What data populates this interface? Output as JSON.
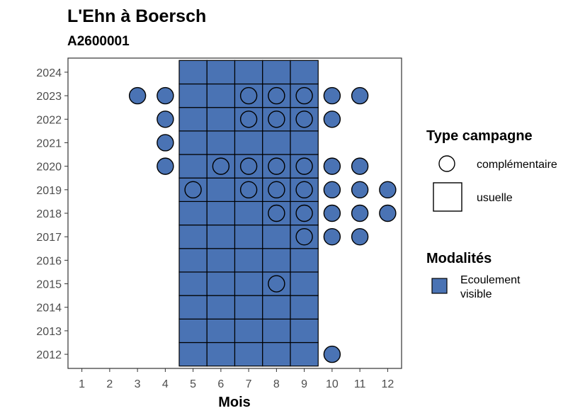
{
  "title": "L'Ehn à Boersch",
  "subtitle": "A2600001",
  "chart_data": {
    "type": "heatmap",
    "title": "L'Ehn à Boersch",
    "subtitle": "A2600001",
    "xlabel": "Mois",
    "ylabel": "",
    "x_ticks": [
      1,
      2,
      3,
      4,
      5,
      6,
      7,
      8,
      9,
      10,
      11,
      12
    ],
    "y_ticks": [
      2012,
      2013,
      2014,
      2015,
      2016,
      2017,
      2018,
      2019,
      2020,
      2021,
      2022,
      2023,
      2024
    ],
    "xlim": [
      0.5,
      12.5
    ],
    "ylim": [
      2011.4,
      2024.6
    ],
    "fill_color": "#4a73b4",
    "grid": false,
    "legend_position": "right",
    "legends": {
      "campagne": {
        "title": "Type campagne",
        "items": [
          {
            "label": "complémentaire",
            "shape": "circle"
          },
          {
            "label": "usuelle",
            "shape": "square"
          }
        ]
      },
      "modalites": {
        "title": "Modalités",
        "items": [
          {
            "label_lines": [
              "Ecoulement",
              "visible"
            ],
            "color": "#4a73b4"
          }
        ]
      }
    },
    "usuelle": {
      "months": [
        5,
        6,
        7,
        8,
        9
      ],
      "years": [
        2012,
        2013,
        2014,
        2015,
        2016,
        2017,
        2018,
        2019,
        2020,
        2021,
        2022,
        2023,
        2024
      ],
      "modalite": "Ecoulement visible"
    },
    "complementaire": [
      {
        "month": 3,
        "year": 2023,
        "filled": true
      },
      {
        "month": 4,
        "year": 2023,
        "filled": true
      },
      {
        "month": 7,
        "year": 2023,
        "filled": false
      },
      {
        "month": 8,
        "year": 2023,
        "filled": false
      },
      {
        "month": 9,
        "year": 2023,
        "filled": false
      },
      {
        "month": 10,
        "year": 2023,
        "filled": true
      },
      {
        "month": 11,
        "year": 2023,
        "filled": true
      },
      {
        "month": 4,
        "year": 2022,
        "filled": true
      },
      {
        "month": 7,
        "year": 2022,
        "filled": false
      },
      {
        "month": 8,
        "year": 2022,
        "filled": false
      },
      {
        "month": 9,
        "year": 2022,
        "filled": false
      },
      {
        "month": 10,
        "year": 2022,
        "filled": true
      },
      {
        "month": 4,
        "year": 2021,
        "filled": true
      },
      {
        "month": 4,
        "year": 2020,
        "filled": true
      },
      {
        "month": 6,
        "year": 2020,
        "filled": false
      },
      {
        "month": 7,
        "year": 2020,
        "filled": false
      },
      {
        "month": 8,
        "year": 2020,
        "filled": false
      },
      {
        "month": 9,
        "year": 2020,
        "filled": false
      },
      {
        "month": 10,
        "year": 2020,
        "filled": true
      },
      {
        "month": 11,
        "year": 2020,
        "filled": true
      },
      {
        "month": 5,
        "year": 2019,
        "filled": false
      },
      {
        "month": 7,
        "year": 2019,
        "filled": false
      },
      {
        "month": 8,
        "year": 2019,
        "filled": false
      },
      {
        "month": 9,
        "year": 2019,
        "filled": false
      },
      {
        "month": 10,
        "year": 2019,
        "filled": true
      },
      {
        "month": 11,
        "year": 2019,
        "filled": true
      },
      {
        "month": 12,
        "year": 2019,
        "filled": true
      },
      {
        "month": 8,
        "year": 2018,
        "filled": false
      },
      {
        "month": 9,
        "year": 2018,
        "filled": false
      },
      {
        "month": 10,
        "year": 2018,
        "filled": true
      },
      {
        "month": 11,
        "year": 2018,
        "filled": true
      },
      {
        "month": 12,
        "year": 2018,
        "filled": true
      },
      {
        "month": 9,
        "year": 2017,
        "filled": false
      },
      {
        "month": 10,
        "year": 2017,
        "filled": true
      },
      {
        "month": 11,
        "year": 2017,
        "filled": true
      },
      {
        "month": 8,
        "year": 2015,
        "filled": false
      },
      {
        "month": 10,
        "year": 2012,
        "filled": true
      }
    ]
  }
}
